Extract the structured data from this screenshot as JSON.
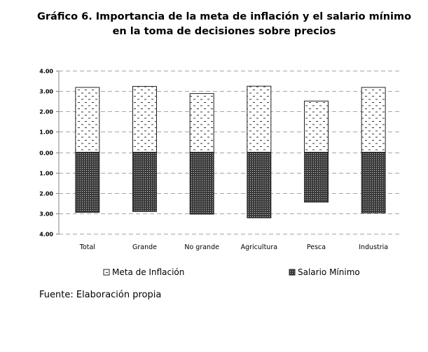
{
  "chart_data": {
    "type": "bar",
    "title": "Gráfico 6. Importancia de la meta de inflación y el salario mínimo\nen la toma de decisiones sobre precios",
    "categories": [
      "Total",
      "Grande",
      "No grande",
      "Agricultura",
      "Pesca",
      "Industria"
    ],
    "series": [
      {
        "name": "Meta de Inflación",
        "values": [
          3.18,
          3.23,
          2.88,
          3.24,
          2.51,
          3.18
        ]
      },
      {
        "name": "Salario Mínimo",
        "values": [
          -2.95,
          -2.91,
          -3.04,
          -3.22,
          -2.45,
          -2.98
        ]
      }
    ],
    "y_ticks": [
      4,
      3,
      2,
      1,
      0,
      -1,
      -2,
      -3,
      -4
    ],
    "y_tick_labels": [
      "4.00",
      "3.00",
      "2.00",
      "1.00",
      "0.00",
      "1.00",
      "2.00",
      "3.00",
      "4.00"
    ],
    "ylim": [
      -4,
      4
    ],
    "xlabel": "",
    "ylabel": "",
    "grid": true,
    "legend_position": "bottom"
  },
  "source": "Fuente: Elaboración propia",
  "colors": {
    "grid": "#a6a6a6",
    "bar_edge": "#222222",
    "dark_fill": "#1a1a1a"
  }
}
